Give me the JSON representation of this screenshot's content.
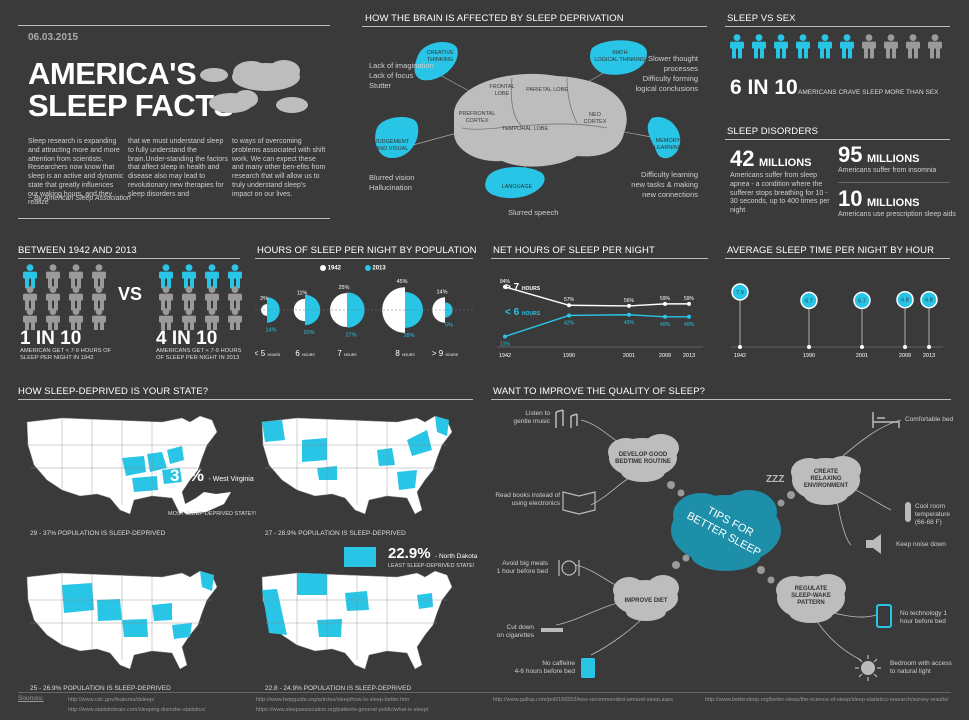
{
  "header": {
    "date": "06.03.2015",
    "title_line1": "AMERICA'S",
    "title_line2": "SLEEP FACTS",
    "intro_col1": "Sleep research is expanding and attracting more and more attention from scientists. Researchers now know that sleep is an active and dynamic state that greatly influences our waking hours, and they realize",
    "intro_col2": "that we must understand sleep to fully understand the brain.Under-standing the factors that affect sleep in health and disease also may lead to revolutionary new therapies for sleep disorders  and",
    "intro_col3": "to ways of overcoming problems associated with shift  work. We can expect these and many other ben-efits from research that will allow us to truly understand sleep's impact on our lives.",
    "byline": "~ By American Sleep Association"
  },
  "brain": {
    "title": "HOW THE BRAIN IS AFFECTED BY SLEEP DEPRIVATION",
    "regions": [
      "CREATIVE THINKING",
      "MATH LOGICAL THINKING",
      "JUDGEMENT AND VISUAL",
      "MEMORY LEARNING",
      "LANGUAGE"
    ],
    "lobes": [
      "FRONTAL LOBE",
      "PARIETAL LOBE",
      "PREFRONTAL CORTEX",
      "TEMPORAL LOBE",
      "NEO CORTEX"
    ],
    "effect_creative": [
      "Lack of imagination",
      "Lack of focus",
      "Stutter"
    ],
    "effect_math": [
      "Slower thought",
      "processes",
      "Difficulty forming",
      "logical conclusions"
    ],
    "effect_judgement": [
      "Blurred vision",
      "Hallucination"
    ],
    "effect_memory": [
      "Difficulty learning",
      "new tasks & making",
      "new connections"
    ],
    "effect_language": "Slurred speech"
  },
  "sex": {
    "title": "SLEEP VS SEX",
    "big": "6 IN 10",
    "text": "AMERICANS CRAVE SLEEP MORE THAN SEX",
    "highlight_fraction": 0.6
  },
  "disorders": {
    "title": "SLEEP DISORDERS",
    "apnea_num": "42",
    "apnea_unit": "MILLIONS",
    "apnea_text": "Americans suffer from sleep apnea - a condition where the sufferer stops breathing for 10 - 30 seconds, up to 400 times per night",
    "insomnia_num": "95",
    "insomnia_unit": "MILLIONS",
    "insomnia_text": "Americans suffer from insomnia",
    "aids_num": "10",
    "aids_unit": "MILLIONS",
    "aids_text": "Americans use prescription sleep aids"
  },
  "between": {
    "title": "BETWEEN 1942 AND 2013",
    "vs": "VS",
    "left_big": "1 IN 10",
    "left_text": "AMERICAN GET < 7-9 HOURS OF SLEEP PER NIGHT IN 1942",
    "right_big": "4 IN 10",
    "right_text": "AMERICANS GET < 7-9 HOURS OF SLEEP PER NIGHT IN 2013",
    "left_fraction": 0.1,
    "right_fraction": 0.4
  },
  "hours_pop": {
    "title": "HOURS OF SLEEP PER NIGHT BY POPULATION",
    "legend": [
      "1942",
      "2013"
    ],
    "colors": {
      "y1942": "#ffffff",
      "y2013": "#29c5e6"
    },
    "groups": [
      {
        "label": "< 5",
        "unit": "HOURS",
        "v1942": "3%",
        "v2013": "14%"
      },
      {
        "label": "6",
        "unit": "HOURS",
        "v1942": "11%",
        "v2013": "20%"
      },
      {
        "label": "7",
        "unit": "HOURS",
        "v1942": "25%",
        "v2013": "27%"
      },
      {
        "label": "8",
        "unit": "HOURS",
        "v1942": "45%",
        "v2013": "28%"
      },
      {
        "label": "> 9",
        "unit": "HOURS",
        "v1942": "14%",
        "v2013": "5%"
      }
    ]
  },
  "net_hours": {
    "title": "NET HOURS OF SLEEP PER NIGHT",
    "label_gt7": "> 7",
    "label_lt6": "< 6",
    "hours_unit": "HOURS"
  },
  "avg_sleep": {
    "title": "AVERAGE SLEEP TIME PER NIGHT BY HOUR"
  },
  "chart_data": [
    {
      "type": "line",
      "x": [
        "1942",
        "1990",
        "2001",
        "2009",
        "2013"
      ],
      "series": [
        {
          "name": "> 7 HOURS",
          "values": [
            84,
            57,
            56,
            59,
            59
          ],
          "labels": [
            "84%",
            "57%",
            "56%",
            "59%",
            "59%"
          ]
        },
        {
          "name": "< 6 HOURS",
          "values": [
            11,
            42,
            43,
            40,
            40
          ],
          "labels": [
            "11%",
            "42%",
            "43%",
            "40%",
            "40%"
          ]
        }
      ],
      "ylim": [
        0,
        100
      ]
    },
    {
      "type": "scatter",
      "x": [
        "1942",
        "1990",
        "2001",
        "2009",
        "2013"
      ],
      "values": [
        7.9,
        6.7,
        6.7,
        6.8,
        6.8
      ],
      "labels": [
        "7.9",
        "6.7",
        "6.7",
        "6.8",
        "6.8"
      ]
    }
  ],
  "states": {
    "title": "HOW SLEEP-DEPRIVED IS YOUR STATE?",
    "map1_caption": "29 - 37% POPULATION IS SLEEP-DEPRIVED",
    "map2_caption": "27 - 28.9% POPULATION IS SLEEP-DEPRIVED",
    "map3_caption": "25 - 26.9% POPULATION IS SLEEP-DEPRIVED",
    "map4_caption": "22.8 - 24.9% POPULATION IS SLEEP-DEPRIVED",
    "most_pct": "37%",
    "most_state": "- West Virginia",
    "most_label": "MOST SLEEP-DEPRIVED STATE!!!",
    "least_pct": "22.9%",
    "least_state": "- North Dakota",
    "least_label": "LEAST SLEEP-DEPRIVED STATE!"
  },
  "tips": {
    "title": "WANT TO IMPROVE THE QUALITY OF SLEEP?",
    "center": [
      "TIPS FOR",
      "BETTER SLEEP"
    ],
    "zzz": "ZZZ",
    "clouds": {
      "routine": [
        "DEVELOP GOOD",
        "BEDTIME ROUTINE"
      ],
      "environment": [
        "CREATE",
        "RELAXING",
        "ENVIRONMENT"
      ],
      "diet": [
        "IMPROVE DIET"
      ],
      "pattern": [
        "REGULATE",
        "SLEEP-WAKE",
        "PATTERN"
      ]
    },
    "items": {
      "music": [
        "Listen to",
        "gentle music"
      ],
      "books": [
        "Read books instead of",
        "using electronics"
      ],
      "meals": [
        "Avoid big meals",
        "1 hour before bed"
      ],
      "cigarettes": [
        "Cut down",
        "on cigarettes"
      ],
      "caffeine": [
        "No caffeine",
        "4-6 hours before bed"
      ],
      "bed": [
        "Comfortable bed"
      ],
      "temp": [
        "Cool room",
        "temperature",
        "(66-68 F)"
      ],
      "noise": [
        "Keep noise down"
      ],
      "tech": [
        "No technology 1",
        "hour before bed"
      ],
      "light": [
        "Bedroom with access",
        "to natural light"
      ]
    }
  },
  "sources": {
    "label": "Sources:",
    "links": [
      "http://www.cdc.gov/features/dsleep/",
      "http://www.statisticbrain.com/sleeping-disorder-statistics/",
      "http://www.helpguide.org/articles/sleep/how-to-sleep-better.htm",
      "https://www.sleepassociation.org/patients-general-public/what-is-sleep/",
      "http://www.gallup.com/poll/166553/less-recommended-amount-sleep.aspx",
      "http://www.bettersleep.org/better-sleep/the-science-of-sleep/sleep-statistics-research/survey-results/"
    ]
  }
}
